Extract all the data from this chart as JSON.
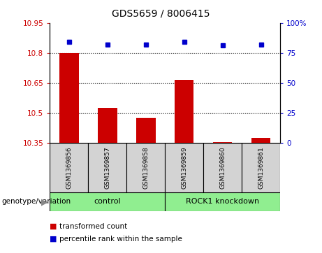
{
  "title": "GDS5659 / 8006415",
  "samples": [
    "GSM1369856",
    "GSM1369857",
    "GSM1369858",
    "GSM1369859",
    "GSM1369860",
    "GSM1369861"
  ],
  "transformed_counts": [
    10.8,
    10.525,
    10.475,
    10.665,
    10.355,
    10.375
  ],
  "percentile_ranks": [
    84,
    82,
    82,
    84,
    81,
    82
  ],
  "bar_color": "#cc0000",
  "dot_color": "#0000cc",
  "ylim_left": [
    10.35,
    10.95
  ],
  "ylim_right": [
    0,
    100
  ],
  "yticks_left": [
    10.35,
    10.5,
    10.65,
    10.8,
    10.95
  ],
  "yticks_right": [
    0,
    25,
    50,
    75,
    100
  ],
  "ytick_labels_left": [
    "10.35",
    "10.5",
    "10.65",
    "10.8",
    "10.95"
  ],
  "ytick_labels_right": [
    "0",
    "25",
    "50",
    "75",
    "100%"
  ],
  "grid_lines": [
    10.5,
    10.65,
    10.8
  ],
  "groups": [
    {
      "label": "control",
      "start": 0,
      "end": 3
    },
    {
      "label": "ROCK1 knockdown",
      "start": 3,
      "end": 6
    }
  ],
  "group_label_prefix": "genotype/variation",
  "legend_items": [
    {
      "label": "transformed count",
      "color": "#cc0000"
    },
    {
      "label": "percentile rank within the sample",
      "color": "#0000cc"
    }
  ],
  "bar_width": 0.5,
  "base_value": 10.35,
  "tick_label_color_left": "#cc0000",
  "tick_label_color_right": "#0000cc",
  "gray_color": "#d3d3d3",
  "green_color": "#90ee90"
}
